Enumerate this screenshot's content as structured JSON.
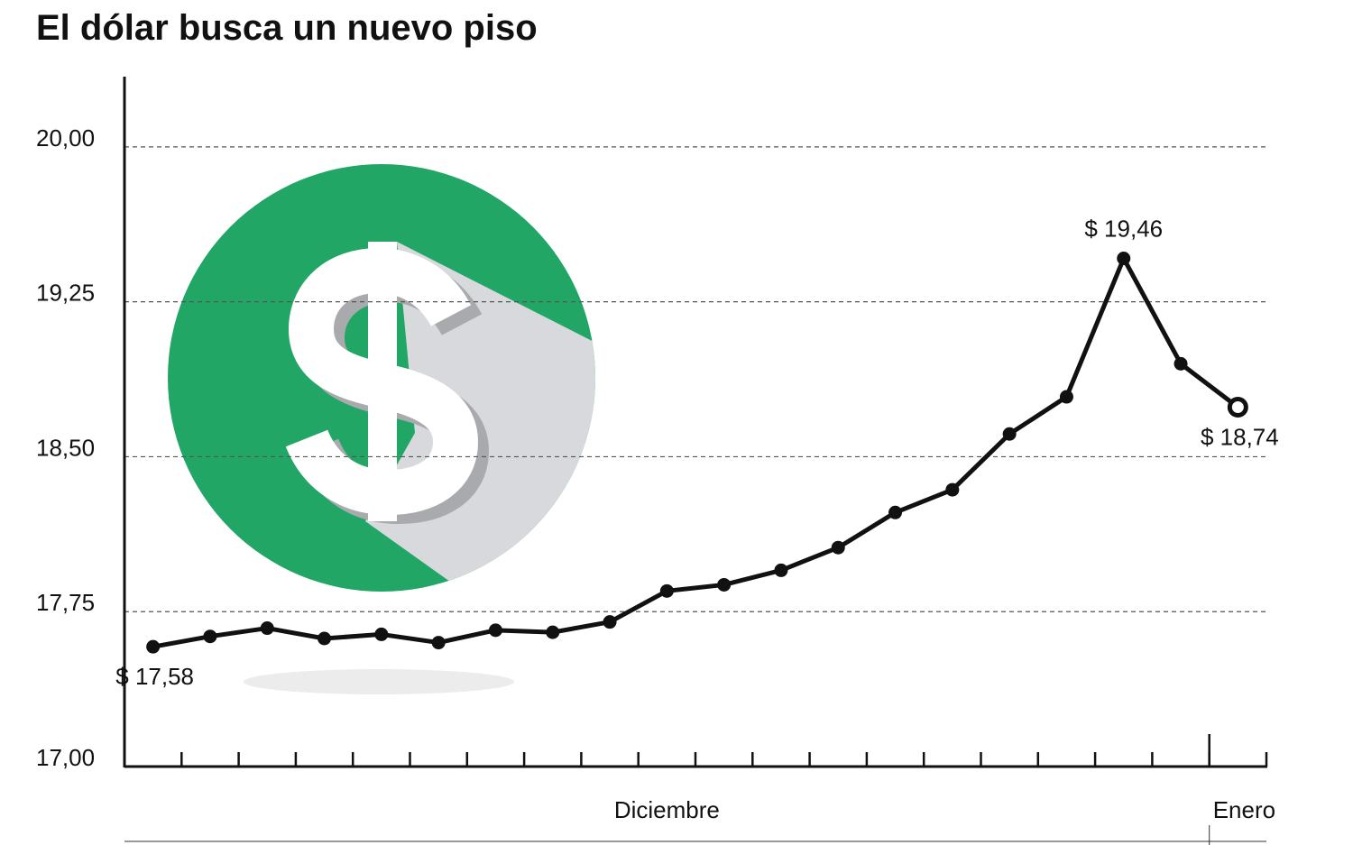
{
  "chart_data": {
    "type": "line",
    "title": "El dólar busca un nuevo piso",
    "categories": [
      null,
      null,
      null,
      null,
      null,
      null,
      null,
      null,
      null,
      null,
      null,
      null,
      null,
      null,
      null,
      null,
      null,
      null,
      null,
      null
    ],
    "series": [
      {
        "color": "#111111",
        "values": [
          17.58,
          17.63,
          17.67,
          17.62,
          17.64,
          17.6,
          17.66,
          17.65,
          17.7,
          17.85,
          17.88,
          17.95,
          18.06,
          18.23,
          18.34,
          18.61,
          18.79,
          19.46,
          18.95,
          18.74
        ],
        "value_labels": [
          "$ 17,58",
          null,
          null,
          null,
          null,
          null,
          null,
          null,
          null,
          null,
          null,
          null,
          null,
          null,
          null,
          null,
          null,
          "$ 19,46",
          null,
          "$ 18,74"
        ]
      }
    ],
    "months": [
      {
        "label": "Diciembre",
        "start": 0
      },
      {
        "label": "Enero",
        "start": 19
      }
    ],
    "ylim": [
      17,
      20.34
    ],
    "yticks": [
      {
        "value": 17,
        "label": "17,00"
      },
      {
        "value": 17.75,
        "label": "17,75"
      },
      {
        "value": 18.5,
        "label": "18,50"
      },
      {
        "value": 19.25,
        "label": "19,25"
      },
      {
        "value": 20,
        "label": "20,00"
      }
    ],
    "grid": true
  }
}
